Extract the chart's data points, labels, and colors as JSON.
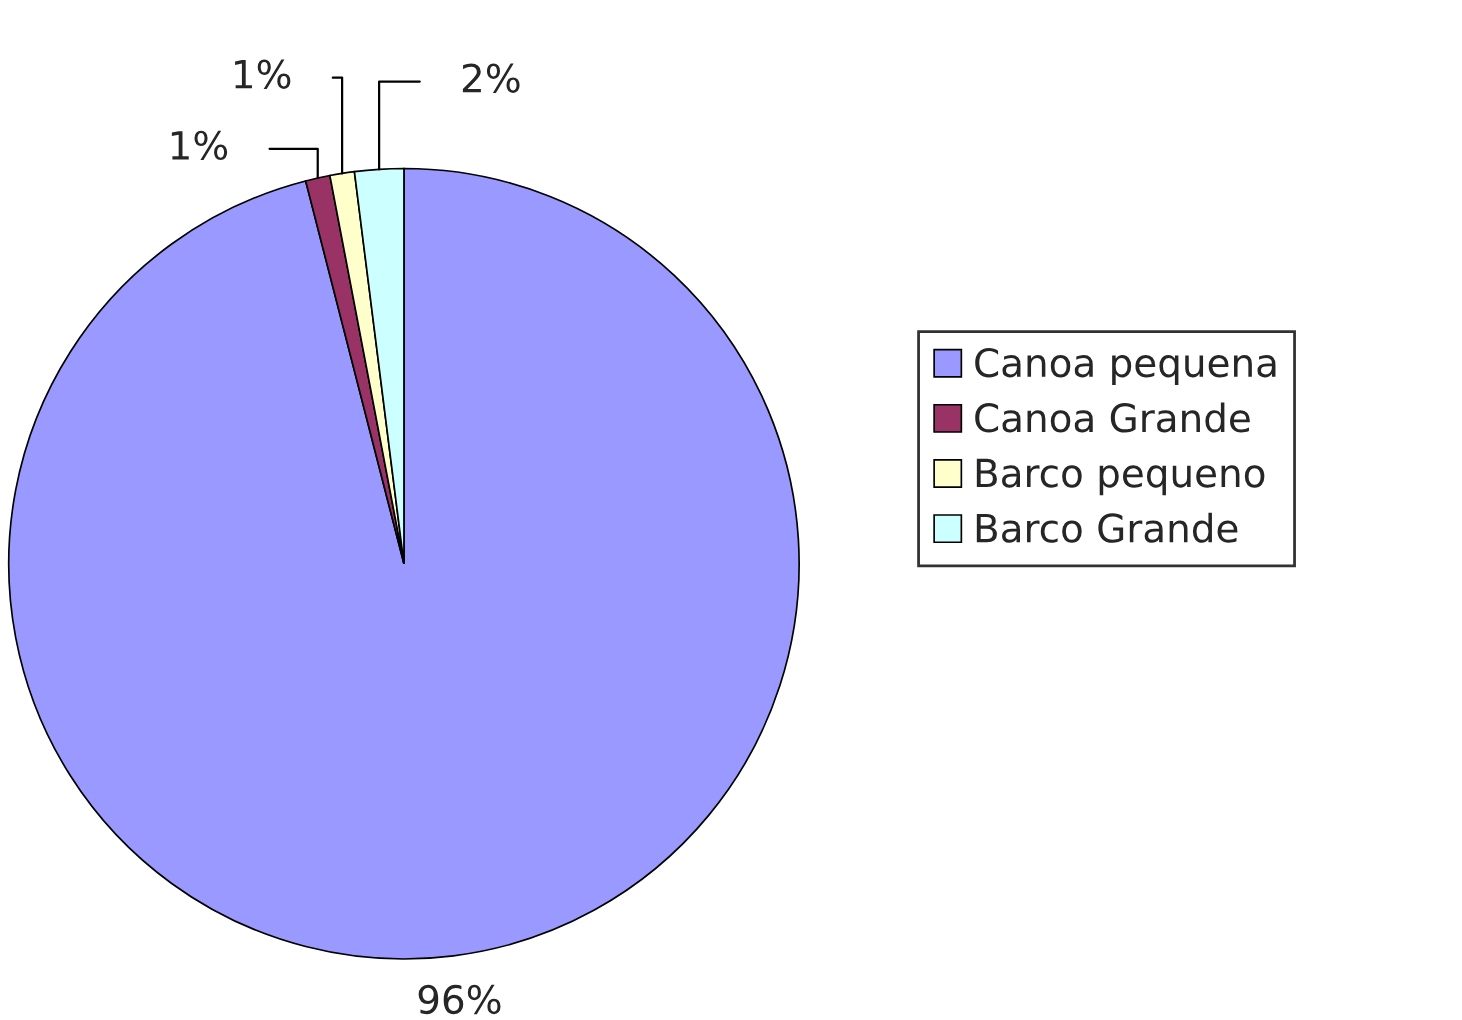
{
  "chart_data": {
    "type": "pie",
    "categories": [
      "Canoa pequena",
      "Canoa Grande",
      "Barco pequeno",
      "Barco Grande"
    ],
    "values": [
      96,
      1,
      1,
      2
    ],
    "colors": [
      "#9999ff",
      "#993366",
      "#ffffcc",
      "#ccffff"
    ],
    "value_labels": [
      "96%",
      "1%",
      "1%",
      "2%"
    ],
    "legend": "right"
  }
}
